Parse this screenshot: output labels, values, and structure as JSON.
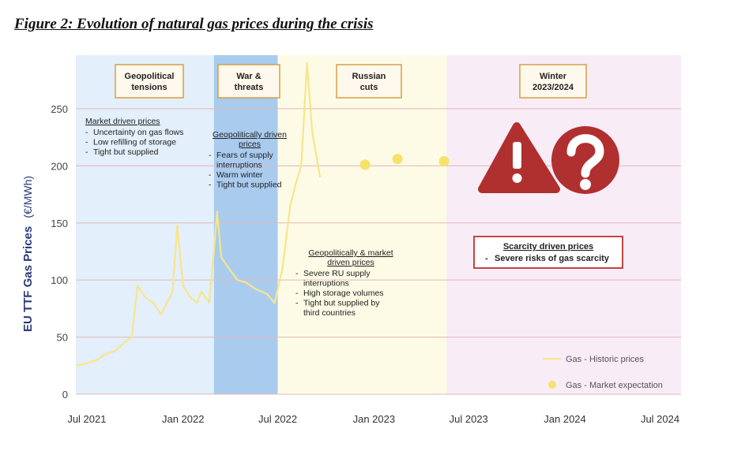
{
  "figure_title": "Figure 2: Evolution of natural gas prices during the crisis",
  "chart_data": {
    "type": "line",
    "ylabel": "EU TTF Gas Prices",
    "ylabel_unit": "(€/MWh)",
    "ylim": [
      0,
      290
    ],
    "yticks": [
      0,
      50,
      100,
      150,
      200,
      250
    ],
    "xlim": [
      "2021-06-10",
      "2024-08-10"
    ],
    "xticks": [
      {
        "date": "2021-07-01",
        "label": "Jul 2021"
      },
      {
        "date": "2022-01-01",
        "label": "Jan 2022"
      },
      {
        "date": "2022-07-01",
        "label": "Jul 2022"
      },
      {
        "date": "2023-01-01",
        "label": "Jan 2023"
      },
      {
        "date": "2023-07-01",
        "label": "Jul 2023"
      },
      {
        "date": "2024-01-01",
        "label": "Jan 2024"
      },
      {
        "date": "2024-07-01",
        "label": "Jul 2024"
      }
    ],
    "grid": true,
    "legend_position": "bottom-right",
    "series": [
      {
        "name": "Gas - Historic prices",
        "color": "#f6e58d",
        "style": "line",
        "points": [
          [
            "2021-06-10",
            25
          ],
          [
            "2021-07-01",
            27
          ],
          [
            "2021-07-20",
            30
          ],
          [
            "2021-08-05",
            35
          ],
          [
            "2021-08-25",
            38
          ],
          [
            "2021-09-10",
            45
          ],
          [
            "2021-09-25",
            50
          ],
          [
            "2021-10-06",
            95
          ],
          [
            "2021-10-20",
            85
          ],
          [
            "2021-11-05",
            80
          ],
          [
            "2021-11-20",
            70
          ],
          [
            "2021-12-01",
            80
          ],
          [
            "2021-12-12",
            90
          ],
          [
            "2021-12-21",
            148
          ],
          [
            "2022-01-01",
            95
          ],
          [
            "2022-01-15",
            85
          ],
          [
            "2022-01-28",
            80
          ],
          [
            "2022-02-05",
            90
          ],
          [
            "2022-02-20",
            80
          ],
          [
            "2022-03-01",
            125
          ],
          [
            "2022-03-07",
            160
          ],
          [
            "2022-03-15",
            120
          ],
          [
            "2022-03-30",
            110
          ],
          [
            "2022-04-15",
            100
          ],
          [
            "2022-05-01",
            98
          ],
          [
            "2022-05-20",
            92
          ],
          [
            "2022-06-10",
            88
          ],
          [
            "2022-06-25",
            80
          ],
          [
            "2022-07-10",
            110
          ],
          [
            "2022-07-25",
            165
          ],
          [
            "2022-08-05",
            185
          ],
          [
            "2022-08-15",
            200
          ],
          [
            "2022-08-26",
            290
          ],
          [
            "2022-09-05",
            230
          ],
          [
            "2022-09-20",
            190
          ]
        ]
      },
      {
        "name": "Gas - Market expectation",
        "color": "#f5e26a",
        "style": "dots",
        "points": [
          [
            "2022-12-15",
            201
          ],
          [
            "2023-02-15",
            206
          ],
          [
            "2023-05-15",
            204
          ]
        ]
      }
    ],
    "bands": [
      {
        "from": "2021-06-10",
        "to": "2022-03-01",
        "color": "#e3effb"
      },
      {
        "from": "2022-03-01",
        "to": "2022-07-01",
        "color": "#a9cbee"
      },
      {
        "from": "2022-07-01",
        "to": "2023-05-20",
        "color": "#fdfbe6"
      },
      {
        "from": "2023-05-20",
        "to": "2024-08-10",
        "color": "#f8ecf7"
      }
    ],
    "phases": [
      {
        "label": "Geopolitical tensions"
      },
      {
        "label": "War & threats"
      },
      {
        "label": "Russian cuts"
      },
      {
        "label": "Winter 2023/2024"
      }
    ],
    "annotations": {
      "market": {
        "heading": "Market driven prices",
        "bullets": [
          "Uncertainty on gas flows",
          "Low refilling of storage",
          "Tight but supplied"
        ]
      },
      "geopolitical": {
        "heading_lines": [
          "Geopolitically driven",
          "prices"
        ],
        "bullets": [
          "Fears of supply",
          "interruptions",
          "Warm winter",
          "Tight but supplied"
        ]
      },
      "geo_market": {
        "heading_lines": [
          "Geopolitically & market",
          "driven prices"
        ],
        "bullets": [
          "Severe RU supply",
          "interruptions",
          "High storage volumes",
          "Tight but supplied by",
          "third countries"
        ]
      },
      "scarcity": {
        "heading": "Scarcity driven prices",
        "bullet": "Severe risks of gas scarcity"
      }
    },
    "warning_icons": [
      "warning-icon",
      "question-icon"
    ],
    "colors": {
      "warning": "#b03030",
      "phase_border": "#d4a047",
      "scarcity_border": "#c03030",
      "grid": "#e3b8b8"
    }
  }
}
